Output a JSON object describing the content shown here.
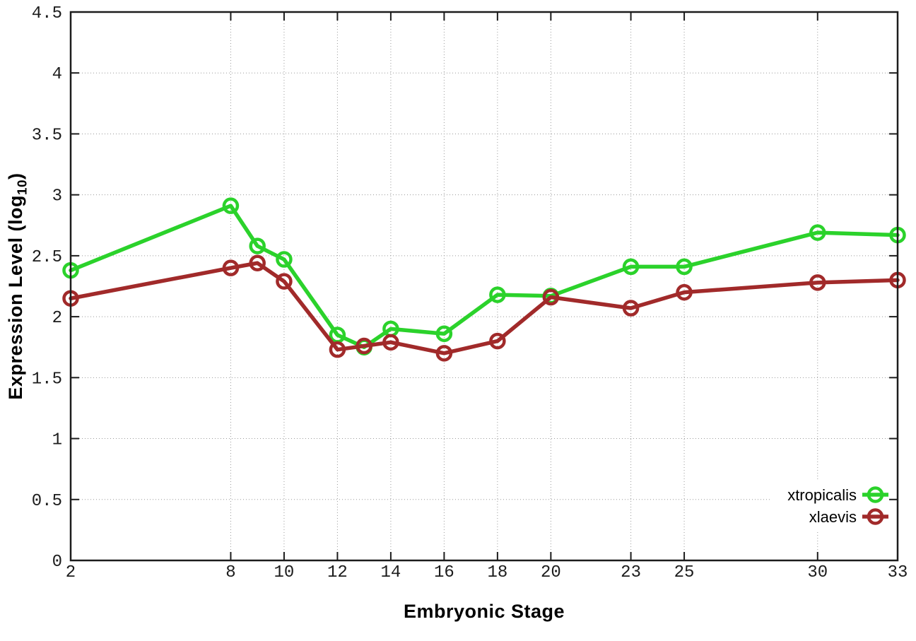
{
  "chart_data": {
    "type": "line",
    "title": "",
    "xlabel": "Embryonic Stage",
    "ylabel": "Expression Level (log10)",
    "ylabel_prefix": "Expression Level (log",
    "ylabel_sub": "10",
    "ylabel_suffix": ")",
    "xlim": [
      2,
      33
    ],
    "ylim": [
      0,
      4.5
    ],
    "grid": true,
    "legend_position": "inside-bottom-right",
    "marker": "open-circle",
    "x": [
      2,
      8,
      9,
      10,
      12,
      13,
      14,
      16,
      18,
      20,
      23,
      25,
      30,
      33
    ],
    "xticks": [
      2,
      8,
      10,
      12,
      14,
      16,
      18,
      20,
      23,
      25,
      30,
      33
    ],
    "xtick_labels": [
      "2",
      "8",
      "10",
      "12",
      "14",
      "16",
      "18",
      "20",
      "23",
      "25",
      "30",
      "33"
    ],
    "yticks": [
      0,
      0.5,
      1,
      1.5,
      2,
      2.5,
      3,
      3.5,
      4,
      4.5
    ],
    "ytick_labels": [
      "0",
      "0.5",
      "1",
      "1.5",
      "2",
      "2.5",
      "3",
      "3.5",
      "4",
      "4.5"
    ],
    "series": [
      {
        "name": "xtropicalis",
        "color": "#2bd22b",
        "values": [
          2.38,
          2.91,
          2.58,
          2.47,
          1.85,
          1.75,
          1.9,
          1.86,
          2.18,
          2.17,
          2.41,
          2.41,
          2.69,
          2.67
        ]
      },
      {
        "name": "xlaevis",
        "color": "#a12a2a",
        "values": [
          2.15,
          2.4,
          2.44,
          2.29,
          1.73,
          1.76,
          1.79,
          1.7,
          1.8,
          2.16,
          2.07,
          2.2,
          2.28,
          2.3
        ]
      }
    ],
    "colors": {
      "grid": "#9a9a9a",
      "axis": "#1c1c1c",
      "text": "#1c1c1c",
      "background": "#ffffff"
    }
  }
}
